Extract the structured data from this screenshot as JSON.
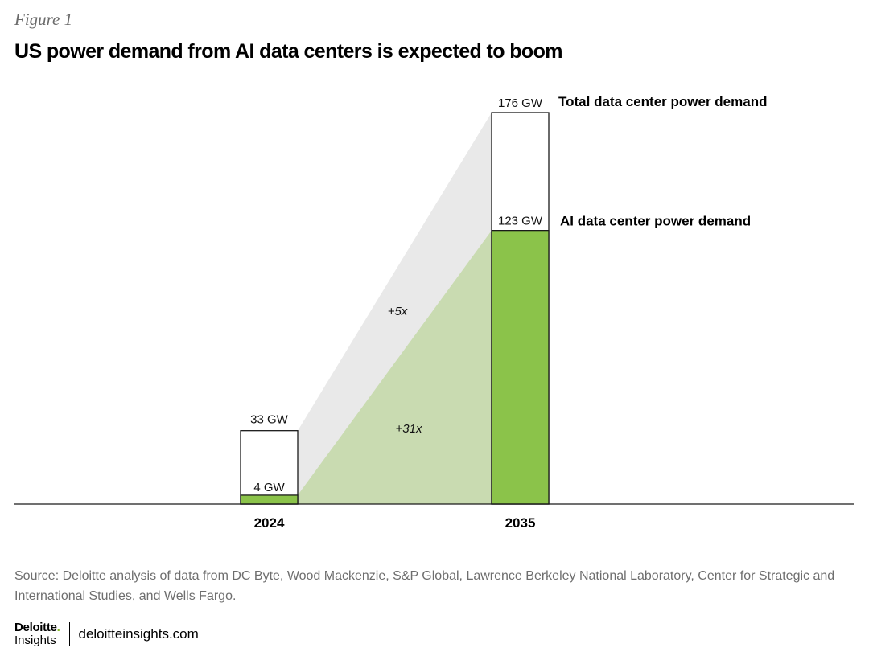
{
  "figure_label": "Figure 1",
  "title": "US power demand from AI data centers is expected to boom",
  "chart_data": {
    "type": "bar",
    "categories": [
      "2024",
      "2035"
    ],
    "series": [
      {
        "name": "Total data center power demand",
        "values": [
          33,
          176
        ],
        "value_labels": [
          "33 GW",
          "176 GW"
        ],
        "color": "#ffffff"
      },
      {
        "name": "AI data center power demand",
        "values": [
          4,
          123
        ],
        "value_labels": [
          "4 GW",
          "123 GW"
        ],
        "color": "#8bc34a"
      }
    ],
    "annotations": [
      "+5x",
      "+31x"
    ],
    "ylim": [
      0,
      176
    ],
    "grid": false,
    "colors": {
      "ai_bar": "#8bc34a",
      "ai_growth_area": "#c9dbb1",
      "total_growth_area": "#e9e9e9",
      "bar_outline": "#1a1a1a",
      "axis": "#1a1a1a"
    }
  },
  "source": "Source: Deloitte analysis of data from DC Byte, Wood Mackenzie, S&P Global, Lawrence Berkeley National Laboratory, Center for Strategic and International Studies, and Wells Fargo.",
  "footer": {
    "brand": "Deloitte",
    "brand_dot": ".",
    "sub": "Insights",
    "url": "deloitteinsights.com"
  }
}
